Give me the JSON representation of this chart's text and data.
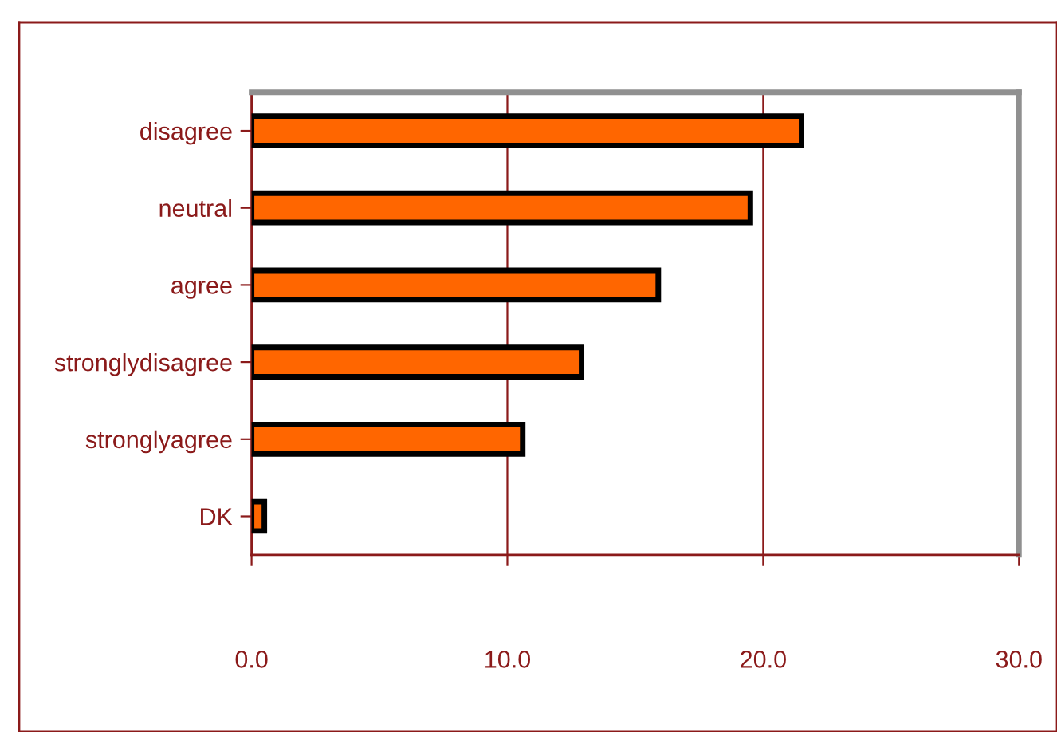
{
  "chart_data": {
    "type": "bar",
    "orientation": "horizontal",
    "categories": [
      "disagree",
      "neutral",
      "agree",
      "stronglydisagree",
      "stronglyagree",
      "DK"
    ],
    "values": [
      21.5,
      19.5,
      15.9,
      12.9,
      10.6,
      0.5
    ],
    "color": "#ff6600",
    "xlim": [
      0,
      30
    ],
    "xticks": [
      {
        "value": 0,
        "label": "0.0"
      },
      {
        "value": 10,
        "label": "10.0"
      },
      {
        "value": 20,
        "label": "20.0"
      },
      {
        "value": 30,
        "label": "30.0"
      }
    ],
    "grid": "x",
    "legend": false
  }
}
